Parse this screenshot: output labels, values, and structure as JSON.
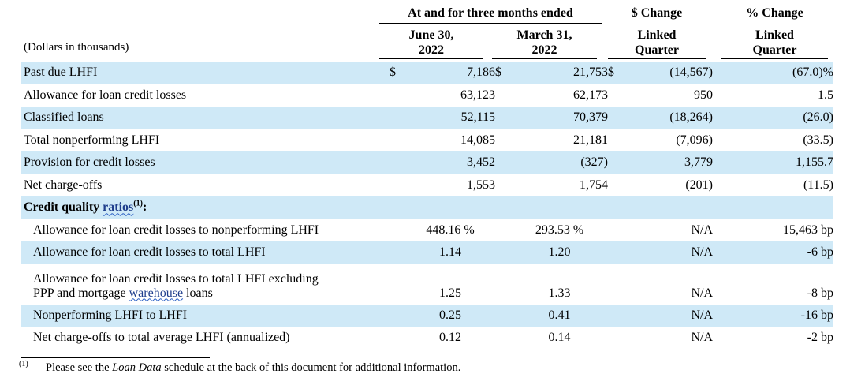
{
  "header": {
    "group_title": "At and for three months ended",
    "dollar_change_title": "$ Change",
    "pct_change_title": "% Change",
    "col1_line1": "June 30,",
    "col1_line2": "2022",
    "col2_line1": "March 31,",
    "col2_line2": "2022",
    "col3_line1": "Linked",
    "col3_line2": "Quarter",
    "col4_line1": "Linked",
    "col4_line2": "Quarter",
    "units": "(Dollars in thousands)"
  },
  "rows": [
    {
      "label": "Past due LHFI",
      "dollar": "$",
      "v1": "7,186",
      "v2": "21,753",
      "chg": "(14,567)",
      "pct": "(67.0)%"
    },
    {
      "label": "Allowance for loan credit losses",
      "v1": "63,123",
      "v2": "62,173",
      "chg": "950",
      "pct": "1.5"
    },
    {
      "label": "Classified loans",
      "v1": "52,115",
      "v2": "70,379",
      "chg": "(18,264)",
      "pct": "(26.0)"
    },
    {
      "label": "Total nonperforming LHFI",
      "v1": "14,085",
      "v2": "21,181",
      "chg": "(7,096)",
      "pct": "(33.5)"
    },
    {
      "label": "Provision for credit losses",
      "v1": "3,452",
      "v2": "(327)",
      "chg": "3,779",
      "pct": "1,155.7"
    },
    {
      "label": "Net charge-offs",
      "v1": "1,553",
      "v2": "1,754",
      "chg": "(201)",
      "pct": "(11.5)"
    }
  ],
  "section": {
    "label_prefix": "Credit quality",
    "label_link": "ratios",
    "footnote_mark": "(1)",
    "label_suffix": ":"
  },
  "ratios": [
    {
      "label": "Allowance for loan credit losses to nonperforming LHFI",
      "v1": "448.16 %",
      "v2": "293.53 %",
      "chg": "N/A",
      "pct": "15,463 bp"
    },
    {
      "label": "Allowance for loan credit losses to total LHFI",
      "v1": "1.14",
      "v2": "1.20",
      "chg": "N/A",
      "pct": "-6 bp"
    },
    {
      "label_line1": "Allowance for loan credit losses to total LHFI excluding",
      "label_line2_prefix": "PPP and mortgage ",
      "label_line2_link": "warehouse",
      "label_line2_suffix": " loans",
      "v1": "1.25",
      "v2": "1.33",
      "chg": "N/A",
      "pct": "-8 bp"
    },
    {
      "label": "Nonperforming LHFI to LHFI",
      "v1": "0.25",
      "v2": "0.41",
      "chg": "N/A",
      "pct": "-16 bp"
    },
    {
      "label": "Net charge-offs to total average LHFI (annualized)",
      "v1": "0.12",
      "v2": "0.14",
      "chg": "N/A",
      "pct": "-2 bp"
    }
  ],
  "footnote": {
    "mark": "(1)",
    "prefix": "Please see the ",
    "italic": "Loan Data",
    "suffix": " schedule at the back of this document for additional information."
  }
}
